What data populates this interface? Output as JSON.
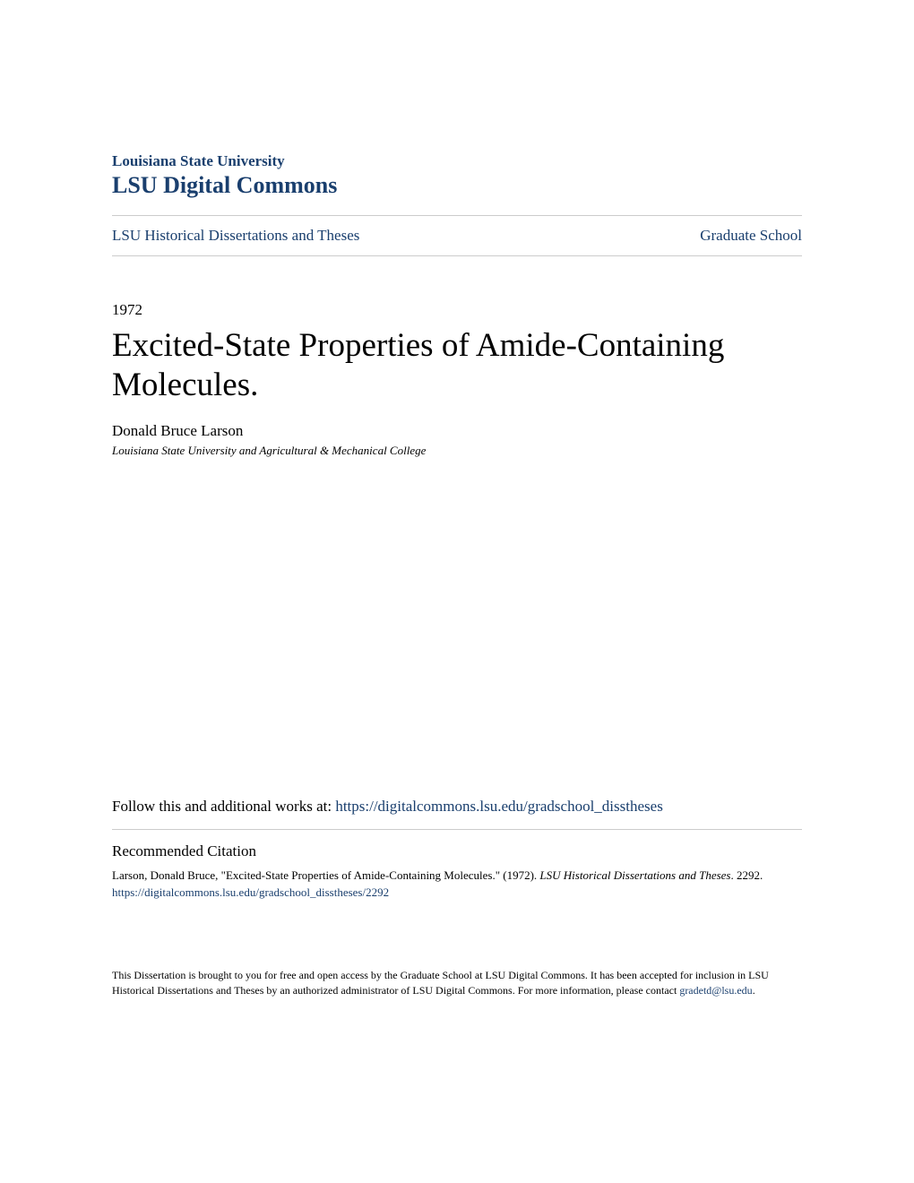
{
  "header": {
    "institution": "Louisiana State University",
    "commons": "LSU Digital Commons"
  },
  "nav": {
    "left": "LSU Historical Dissertations and Theses",
    "right": "Graduate School"
  },
  "document": {
    "year": "1972",
    "title": "Excited-State Properties of Amide-Containing Molecules.",
    "author": "Donald Bruce Larson",
    "affiliation": "Louisiana State University and Agricultural & Mechanical College"
  },
  "follow": {
    "text": "Follow this and additional works at: ",
    "link": "https://digitalcommons.lsu.edu/gradschool_disstheses"
  },
  "citation": {
    "heading": "Recommended Citation",
    "author_part": "Larson, Donald Bruce, \"Excited-State Properties of Amide-Containing Molecules.\" (1972). ",
    "series": "LSU Historical Dissertations and Theses",
    "number": ". 2292.",
    "link": "https://digitalcommons.lsu.edu/gradschool_disstheses/2292"
  },
  "footer": {
    "text": "This Dissertation is brought to you for free and open access by the Graduate School at LSU Digital Commons. It has been accepted for inclusion in LSU Historical Dissertations and Theses by an authorized administrator of LSU Digital Commons. For more information, please contact ",
    "email": "gradetd@lsu.edu",
    "period": "."
  },
  "colors": {
    "link": "#1a3f6e",
    "text": "#000000",
    "border": "#cccccc",
    "background": "#ffffff"
  }
}
